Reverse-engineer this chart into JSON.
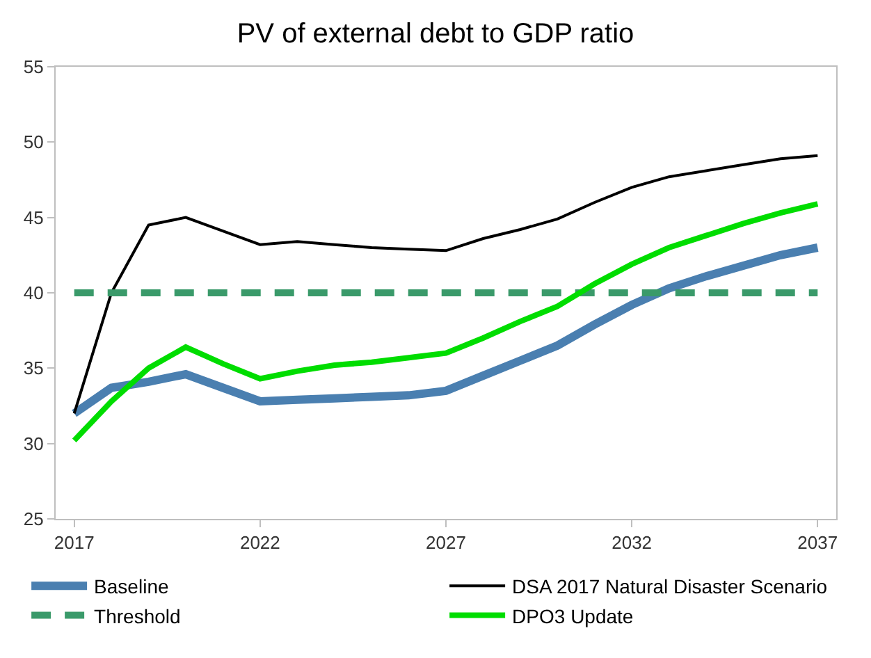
{
  "chart_data": {
    "type": "line",
    "title": "PV of external debt to GDP ratio",
    "x": [
      2017,
      2018,
      2019,
      2020,
      2021,
      2022,
      2023,
      2024,
      2025,
      2026,
      2027,
      2028,
      2029,
      2030,
      2031,
      2032,
      2033,
      2034,
      2035,
      2036,
      2037
    ],
    "series": [
      {
        "name": "Baseline",
        "color": "#4a7fb0",
        "values": [
          32,
          33.7,
          34.1,
          34.6,
          33.7,
          32.8,
          32.9,
          33.0,
          33.1,
          33.2,
          33.5,
          34.5,
          35.5,
          36.5,
          37.9,
          39.2,
          40.3,
          41.1,
          41.8,
          42.5,
          43.0
        ]
      },
      {
        "name": "DSA 2017 Natural Disaster Scenario",
        "color": "#000000",
        "values": [
          32,
          40,
          44.5,
          45,
          44.1,
          43.2,
          43.4,
          43.2,
          43.0,
          42.9,
          42.8,
          43.6,
          44.2,
          44.9,
          46.0,
          47.0,
          47.7,
          48.1,
          48.5,
          48.9,
          49.1
        ]
      },
      {
        "name": "Threshold",
        "color": "#3a9a6a",
        "line_style": "dashed",
        "values": [
          40,
          40,
          40,
          40,
          40,
          40,
          40,
          40,
          40,
          40,
          40,
          40,
          40,
          40,
          40,
          40,
          40,
          40,
          40,
          40,
          40
        ]
      },
      {
        "name": "DPO3 Update",
        "color": "#00dd00",
        "values": [
          30.2,
          32.8,
          35.0,
          36.4,
          35.3,
          34.3,
          34.8,
          35.2,
          35.4,
          35.7,
          36.0,
          37.0,
          38.1,
          39.1,
          40.6,
          41.9,
          43.0,
          43.8,
          44.6,
          45.3,
          45.9
        ]
      }
    ],
    "xlim": [
      2016.5,
      2037.5
    ],
    "xticks": [
      2017,
      2022,
      2027,
      2032,
      2037
    ],
    "ylim": [
      25,
      55
    ],
    "yticks": [
      25,
      30,
      35,
      40,
      45,
      50,
      55
    ],
    "legend": "bottom",
    "marker": "none",
    "line_style": "solid"
  }
}
